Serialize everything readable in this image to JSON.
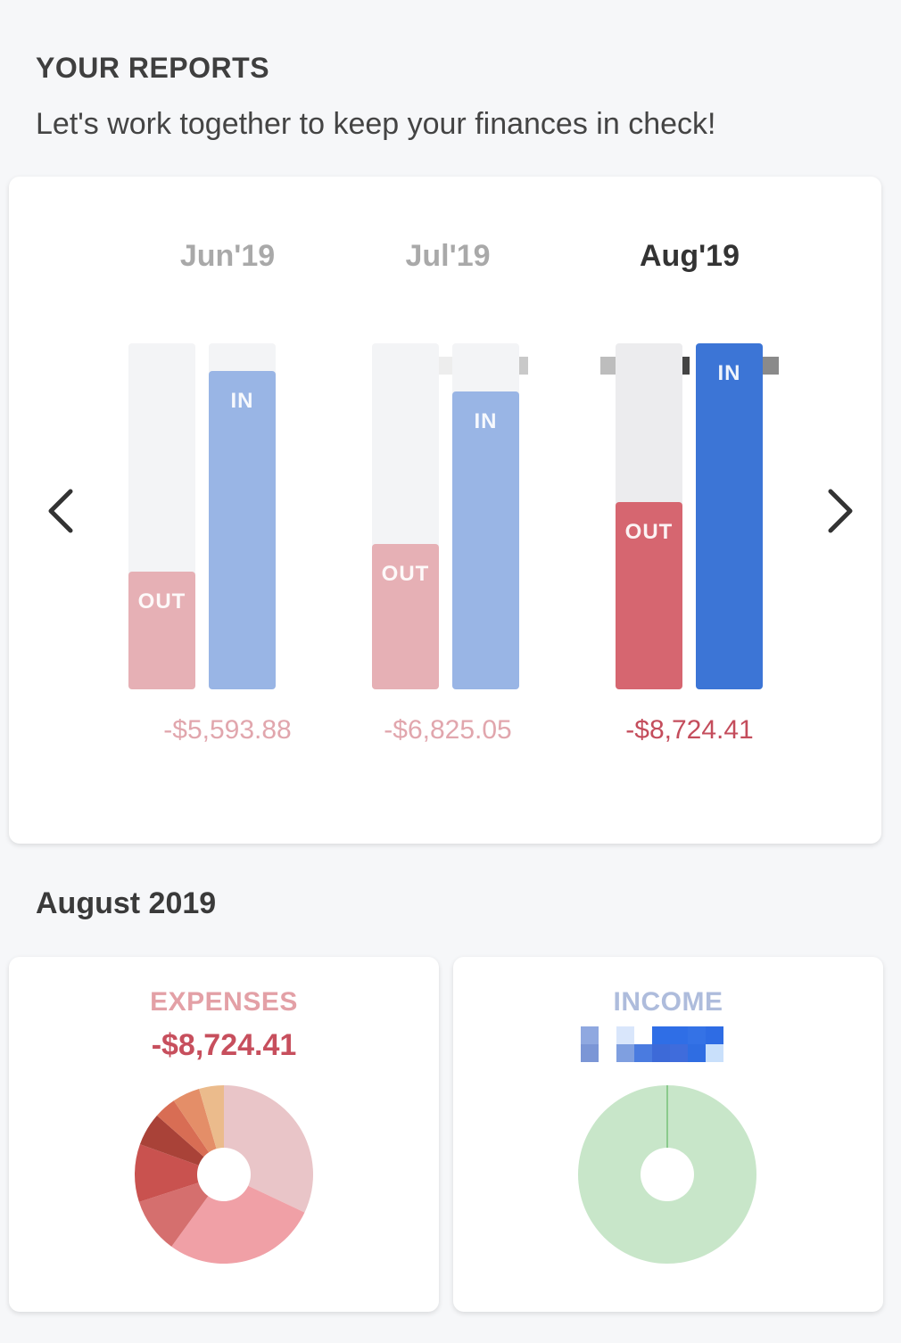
{
  "header": {
    "title": "YOUR REPORTS",
    "subtitle": "Let's work together to keep your finances in check!"
  },
  "overview": {
    "months": [
      {
        "label": "Jun'19",
        "out_label": "OUT",
        "in_label": "IN",
        "amount": "-$5,593.88",
        "out_fraction": 0.34,
        "in_fraction": 0.92,
        "state": "muted"
      },
      {
        "label": "Jul'19",
        "out_label": "OUT",
        "in_label": "IN",
        "amount": "-$6,825.05",
        "out_fraction": 0.42,
        "in_fraction": 0.86,
        "state": "muted"
      },
      {
        "label": "Aug'19",
        "out_label": "OUT",
        "in_label": "IN",
        "amount": "-$8,724.41",
        "out_fraction": 0.54,
        "in_fraction": 1.0,
        "state": "active"
      }
    ],
    "nav": {
      "prev_icon": "chevron-left-icon",
      "next_icon": "chevron-right-icon"
    }
  },
  "month_section": {
    "title": "August 2019"
  },
  "expenses": {
    "title": "EXPENSES",
    "value": "-$8,724.41",
    "slices": [
      {
        "share": 0.32,
        "color": "#e9c5c8"
      },
      {
        "share": 0.28,
        "color": "#f0a0a6"
      },
      {
        "share": 0.1,
        "color": "#d56f6e"
      },
      {
        "share": 0.105,
        "color": "#c9524f"
      },
      {
        "share": 0.06,
        "color": "#a94238"
      },
      {
        "share": 0.04,
        "color": "#d86d54"
      },
      {
        "share": 0.05,
        "color": "#e48e68"
      },
      {
        "share": 0.045,
        "color": "#ebbb8c"
      }
    ]
  },
  "income": {
    "title": "INCOME",
    "slices": [
      {
        "share": 1.0,
        "color": "#c8e6c9"
      }
    ],
    "divider_color": "#4caf50"
  },
  "colors": {
    "out_active": "#d66670",
    "in_active": "#3c75d6",
    "out_muted": "#e6b0b5",
    "in_muted": "#99b5e5"
  }
}
